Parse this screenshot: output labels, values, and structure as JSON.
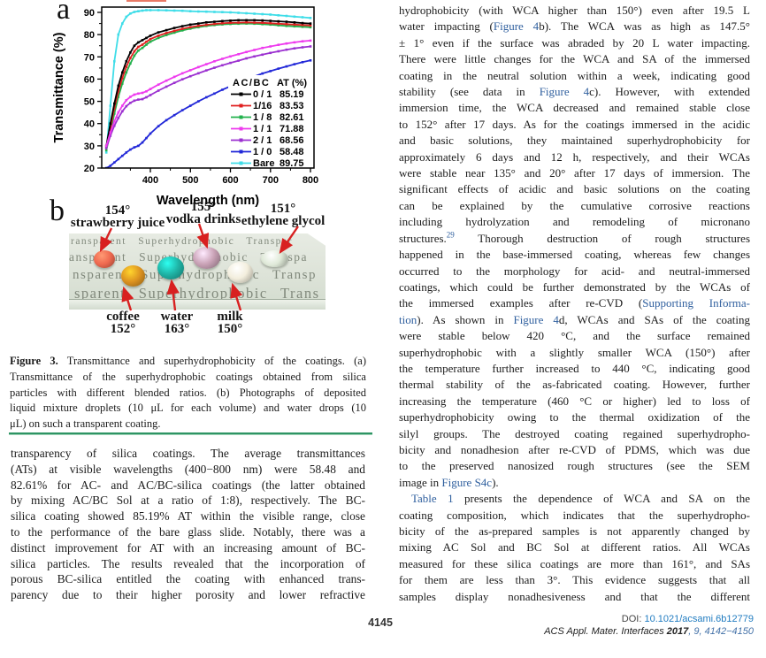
{
  "figure": {
    "panel_a_label": "a",
    "panel_b_label": "b",
    "photo": {
      "glass_rows": [
        "ransparent Superhydrophobic Transpar",
        "ansparent Superhydrophobic Transpa",
        "nsparent Superhydrophobic Transp",
        "sparent Superhydrophobic Trans"
      ],
      "droplets": [
        {
          "id": "strawberry",
          "name": "strawberry juice",
          "angle": "154°",
          "pos": "top",
          "color": "#ef6a50"
        },
        {
          "id": "vodka",
          "name": "vodka drinks",
          "angle": "155°",
          "pos": "top",
          "color": "#c9a2b6"
        },
        {
          "id": "glycol",
          "name": "ethylene glycol",
          "angle": "151°",
          "pos": "top",
          "color": "#dfe9d8"
        },
        {
          "id": "coffee",
          "name": "coffee",
          "angle": "152°",
          "pos": "bottom",
          "color": "#dd9320"
        },
        {
          "id": "water",
          "name": "water",
          "angle": "163°",
          "pos": "bottom",
          "color": "#1fb4a6"
        },
        {
          "id": "milk",
          "name": "milk",
          "angle": "150°",
          "pos": "bottom",
          "color": "#f3eedd"
        }
      ],
      "arrow_color": "#d82020"
    }
  },
  "chart_data": {
    "type": "line",
    "title": "",
    "xlabel": "Wavelength (nm)",
    "ylabel": "Transmittance (%)",
    "xlim": [
      280,
      810
    ],
    "ylim": [
      20,
      92
    ],
    "xticks": [
      400,
      500,
      600,
      700,
      800
    ],
    "yticks": [
      20,
      30,
      40,
      50,
      60,
      70,
      80,
      90
    ],
    "grid": false,
    "legend_position": "lower right",
    "legend_header_left": "AC/BC",
    "legend_header_right": "AT (%)",
    "x": [
      290,
      300,
      310,
      320,
      330,
      340,
      350,
      360,
      370,
      380,
      390,
      400,
      420,
      440,
      460,
      480,
      500,
      520,
      540,
      560,
      580,
      600,
      620,
      640,
      660,
      680,
      700,
      720,
      740,
      760,
      780,
      800
    ],
    "series": [
      {
        "name": "0 / 1",
        "at": "85.19",
        "color": "#000000",
        "y": [
          30,
          40,
          49,
          57,
          63,
          68,
          72,
          75,
          76.5,
          77.5,
          78.5,
          79.5,
          81,
          82,
          83,
          83.8,
          84.5,
          85,
          85.5,
          85.8,
          86.1,
          86.3,
          86.5,
          86.5,
          86.5,
          86.4,
          86.2,
          86,
          85.8,
          85.5,
          85.2,
          85
        ]
      },
      {
        "name": "1/16",
        "at": "83.53",
        "color": "#e02020",
        "y": [
          29,
          38,
          47,
          54.5,
          60.5,
          65.5,
          69.5,
          72.5,
          74.5,
          75.5,
          76.8,
          78,
          79.5,
          80.7,
          81.7,
          82.6,
          83.3,
          83.9,
          84.4,
          84.8,
          85.1,
          85.3,
          85.4,
          85.5,
          85.4,
          85.3,
          85.1,
          84.9,
          84.7,
          84.5,
          84.3,
          84.1
        ]
      },
      {
        "name": "1 / 8",
        "at": "82.61",
        "color": "#22b14c",
        "y": [
          28,
          36,
          44.5,
          52,
          58,
          63,
          67,
          70.5,
          72.8,
          74,
          75.5,
          76.8,
          78.5,
          79.8,
          80.9,
          81.9,
          82.7,
          83.3,
          83.9,
          84.3,
          84.6,
          84.8,
          84.9,
          85,
          84.9,
          84.7,
          84.5,
          84.2,
          83.9,
          83.7,
          83.5,
          83.3
        ]
      },
      {
        "name": "1 / 1",
        "at": "71.88",
        "color": "#ee3bee",
        "y": [
          30,
          36,
          41,
          45,
          48,
          50.5,
          52,
          53,
          53.5,
          53.8,
          54.5,
          55.5,
          57.5,
          59.3,
          61,
          62.6,
          64,
          65.4,
          66.7,
          68,
          69.1,
          70.2,
          71.2,
          72.2,
          73.1,
          74,
          74.7,
          75.4,
          76,
          76.5,
          77,
          77.3
        ]
      },
      {
        "name": "2 / 1",
        "at": "68.56",
        "color": "#9b30d0",
        "y": [
          29,
          34.5,
          39,
          42.5,
          45.5,
          47.8,
          49.3,
          50.3,
          50.8,
          51,
          51.8,
          52.8,
          54.8,
          56.6,
          58.3,
          59.9,
          61.3,
          62.6,
          63.9,
          65.1,
          66.2,
          67.3,
          68.3,
          69.3,
          70.2,
          71,
          71.8,
          72.5,
          73.2,
          73.8,
          74.3,
          74.7
        ]
      },
      {
        "name": "1 / 0",
        "at": "58.48",
        "color": "#2228d8",
        "y": [
          20,
          21,
          22.5,
          24,
          25.5,
          27,
          28.3,
          29.3,
          30,
          31.5,
          33.5,
          35.5,
          38.8,
          41.5,
          43.8,
          46,
          48,
          50,
          51.8,
          53.5,
          55.2,
          56.8,
          58.3,
          59.8,
          61.2,
          62.5,
          63.6,
          64.7,
          65.7,
          66.7,
          67.6,
          68.4
        ]
      },
      {
        "name": "Bare",
        "at": "89.75",
        "color": "#3fdde8",
        "y": [
          27,
          48,
          68,
          80,
          85,
          88,
          89.5,
          90.2,
          90.5,
          90.8,
          91,
          91,
          91,
          90.9,
          90.8,
          90.7,
          90.5,
          90.4,
          90.3,
          90.2,
          90.1,
          90,
          89.8,
          89.6,
          89.4,
          89.2,
          89,
          88.7,
          88.4,
          88.1,
          87.8,
          87.5
        ]
      }
    ]
  },
  "caption": {
    "lines": [
      {
        "seg": [
          [
            "Figure 3.",
            "b"
          ],
          [
            " Transmittance and superhydrophobicity of the coatings. (a)",
            "p"
          ]
        ]
      },
      {
        "seg": [
          [
            "Transmittance of the superhydrophobic coatings obtained from silica",
            "p"
          ]
        ]
      },
      {
        "seg": [
          [
            "particles with different blended ratios. (b) Photographs of deposited",
            "p"
          ]
        ]
      },
      {
        "seg": [
          [
            "liquid mixture droplets (10 μL for each volume) and water drops (10",
            "p"
          ]
        ]
      },
      {
        "seg": [
          [
            "μL) on such a transparent coating.",
            "p"
          ]
        ],
        "just": false
      }
    ]
  },
  "left_column": {
    "lines": [
      {
        "seg": [
          [
            "transparency of silica coatings. The average transmittances",
            "p"
          ]
        ]
      },
      {
        "seg": [
          [
            "(ATs) at visible wavelengths (400−800 nm) were 58.48 and",
            "p"
          ]
        ]
      },
      {
        "seg": [
          [
            "82.61% for AC- and AC/BC-silica coatings (the latter obtained",
            "p"
          ]
        ]
      },
      {
        "seg": [
          [
            "by mixing AC/BC Sol at a ratio of 1:8), respectively. The BC-",
            "p"
          ]
        ]
      },
      {
        "seg": [
          [
            "silica coating showed 85.19% AT within the visible range, close",
            "p"
          ]
        ]
      },
      {
        "seg": [
          [
            "to the performance of the bare glass slide. Notably, there was a",
            "p"
          ]
        ]
      },
      {
        "seg": [
          [
            "distinct improvement for AT with an increasing amount of BC-",
            "p"
          ]
        ]
      },
      {
        "seg": [
          [
            "silica particles. The results revealed that the incorporation of",
            "p"
          ]
        ]
      },
      {
        "seg": [
          [
            "porous BC-silica entitled the coating with enhanced trans-",
            "p"
          ]
        ]
      },
      {
        "seg": [
          [
            "parency due to their higher porosity and lower refractive",
            "p"
          ]
        ]
      }
    ]
  },
  "right_column": {
    "lines": [
      {
        "seg": [
          [
            "hydrophobicity (with WCA higher than 150°) even after 19.5 L",
            "p"
          ]
        ]
      },
      {
        "seg": [
          [
            "water impacting (",
            "p"
          ],
          [
            "Figure 4",
            "l"
          ],
          [
            "b). The WCA was as high as 147.5°",
            "p"
          ]
        ]
      },
      {
        "seg": [
          [
            "± 1° even if the surface was abraded by 20 L water impacting.",
            "p"
          ]
        ]
      },
      {
        "seg": [
          [
            "There were little changes for the WCA and SA of the immersed",
            "p"
          ]
        ]
      },
      {
        "seg": [
          [
            "coating in the neutral solution within a week, indicating good",
            "p"
          ]
        ]
      },
      {
        "seg": [
          [
            "stability (see data in ",
            "p"
          ],
          [
            "Figure 4",
            "l"
          ],
          [
            "c). However, with extended",
            "p"
          ]
        ]
      },
      {
        "seg": [
          [
            "immersion time, the WCA decreased and remained stable close",
            "p"
          ]
        ]
      },
      {
        "seg": [
          [
            "to 152° after 17 days. As for the coatings immersed in the acidic",
            "p"
          ]
        ]
      },
      {
        "seg": [
          [
            "and basic solutions, they maintained superhydrophobicity for",
            "p"
          ]
        ]
      },
      {
        "seg": [
          [
            "approximately 6 days and 12 h, respectively, and their WCAs",
            "p"
          ]
        ]
      },
      {
        "seg": [
          [
            "were stable near 135° and 20° after 17 days of immersion. The",
            "p"
          ]
        ]
      },
      {
        "seg": [
          [
            "significant effects of acidic and basic solutions on the coating",
            "p"
          ]
        ]
      },
      {
        "seg": [
          [
            "can be explained by the cumulative corrosive reactions",
            "p"
          ]
        ]
      },
      {
        "seg": [
          [
            "including hydrolyzation and remodeling of micronano",
            "p"
          ]
        ]
      },
      {
        "seg": [
          [
            "structures.",
            "p"
          ],
          [
            "29",
            "sup"
          ],
          [
            " Thorough destruction of rough structures",
            "p"
          ]
        ]
      },
      {
        "seg": [
          [
            "happened in the base-immersed coating, whereas few changes",
            "p"
          ]
        ]
      },
      {
        "seg": [
          [
            "occurred to the morphology for acid- and neutral-immersed",
            "p"
          ]
        ]
      },
      {
        "seg": [
          [
            "coatings, which could be further demonstrated by the WCAs of",
            "p"
          ]
        ]
      },
      {
        "seg": [
          [
            "the immersed examples after re-CVD (",
            "p"
          ],
          [
            "Supporting Informa-",
            "l"
          ]
        ]
      },
      {
        "seg": [
          [
            "tion",
            "l"
          ],
          [
            "). As shown in ",
            "p"
          ],
          [
            "Figure 4",
            "l"
          ],
          [
            "d, WCAs and SAs of the coating",
            "p"
          ]
        ]
      },
      {
        "seg": [
          [
            "were stable below 420 °C, and the surface remained",
            "p"
          ]
        ]
      },
      {
        "seg": [
          [
            "superhydrophobic with a slightly smaller WCA (150°) after",
            "p"
          ]
        ]
      },
      {
        "seg": [
          [
            "the temperature further increased to 440 °C, indicating good",
            "p"
          ]
        ]
      },
      {
        "seg": [
          [
            "thermal stability of the as-fabricated coating. However, further",
            "p"
          ]
        ]
      },
      {
        "seg": [
          [
            "increasing the temperature (460 °C or higher) led to loss of",
            "p"
          ]
        ]
      },
      {
        "seg": [
          [
            "superhydrophobicity owing to the thermal oxidization of the",
            "p"
          ]
        ]
      },
      {
        "seg": [
          [
            "silyl groups. The destroyed coating regained superhydropho-",
            "p"
          ]
        ]
      },
      {
        "seg": [
          [
            "bicity and nonadhesion after re-CVD of PDMS, which was due",
            "p"
          ]
        ]
      },
      {
        "seg": [
          [
            "to the preserved nanosized rough structures (see the SEM",
            "p"
          ]
        ]
      },
      {
        "seg": [
          [
            "image in ",
            "p"
          ],
          [
            "Figure S4c",
            "l"
          ],
          [
            ").",
            "p"
          ]
        ],
        "just": false
      },
      {
        "seg": [
          [
            "Table 1",
            "l"
          ],
          [
            " presents the dependence of WCA and SA on the",
            "p"
          ]
        ],
        "indent": true
      },
      {
        "seg": [
          [
            "coating composition, which indicates that the superhydropho-",
            "p"
          ]
        ]
      },
      {
        "seg": [
          [
            "bicity of the as-prepared samples is not apparently changed by",
            "p"
          ]
        ]
      },
      {
        "seg": [
          [
            "mixing AC Sol and BC Sol at different ratios. All WCAs",
            "p"
          ]
        ]
      },
      {
        "seg": [
          [
            "measured for these silica coatings are more than 161°, and SAs",
            "p"
          ]
        ]
      },
      {
        "seg": [
          [
            "for them are less than 3°. This evidence suggests that all",
            "p"
          ]
        ]
      },
      {
        "seg": [
          [
            "samples display nonadhesiveness and that the different",
            "p"
          ]
        ]
      }
    ]
  },
  "footer": {
    "page_number": "4145",
    "doi_prefix": "DOI: ",
    "doi_link": "10.1021/acsami.6b12779",
    "journal_name": "ACS Appl. Mater. Interfaces ",
    "journal_year": "2017",
    "journal_rest": ", 9, 4142−4150"
  }
}
